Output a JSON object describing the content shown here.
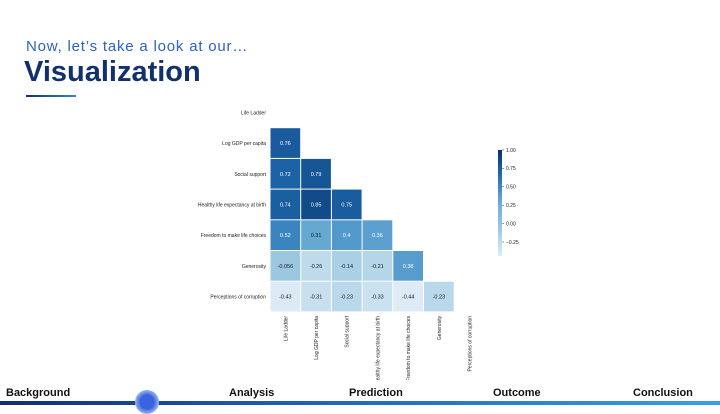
{
  "header": {
    "subtitle": "Now, let’s take a look at our…",
    "title": "Visualization"
  },
  "nav": {
    "items": [
      "Background",
      "Analysis",
      "Prediction",
      "Outcome",
      "Conclusion"
    ],
    "active_index": 0
  },
  "chart_data": {
    "type": "heatmap",
    "title": "",
    "variables": [
      "Life Ladder",
      "Log GDP per capita",
      "Social support",
      "Healthy life expectancy at birth",
      "Freedom to make life choices",
      "Generosity",
      "Perceptions of corruption"
    ],
    "matrix_lower": [
      [],
      [
        0.76
      ],
      [
        0.72,
        0.79
      ],
      [
        0.74,
        0.85,
        0.75
      ],
      [
        0.52,
        0.31,
        0.4,
        0.36
      ],
      [
        -0.056,
        -0.26,
        -0.14,
        -0.21,
        0.38
      ],
      [
        -0.43,
        -0.31,
        -0.23,
        -0.33,
        -0.44,
        -0.23
      ]
    ],
    "cell_labels": [
      [],
      [
        "0.76"
      ],
      [
        "0.72",
        "0.79"
      ],
      [
        "0.74",
        "0.85",
        "0.75"
      ],
      [
        "0.52",
        "0.31",
        "0.4",
        "0.36"
      ],
      [
        "-0.056",
        "-0.26",
        "-0.14",
        "-0.21",
        "0.38"
      ],
      [
        "-0.43",
        "-0.31",
        "-0.23",
        "-0.33",
        "-0.44",
        "-0.23"
      ]
    ],
    "colorbar": {
      "ticks": [
        1.0,
        0.75,
        0.5,
        0.25,
        0.0,
        -0.25
      ],
      "tick_labels": [
        "1.00",
        "0.75",
        "0.50",
        "0.25",
        "0.00",
        "−0.25"
      ],
      "range": [
        -0.44,
        1.0
      ],
      "colormap": "Blues",
      "low_color": "#deebf7",
      "high_color": "#08306b"
    }
  }
}
